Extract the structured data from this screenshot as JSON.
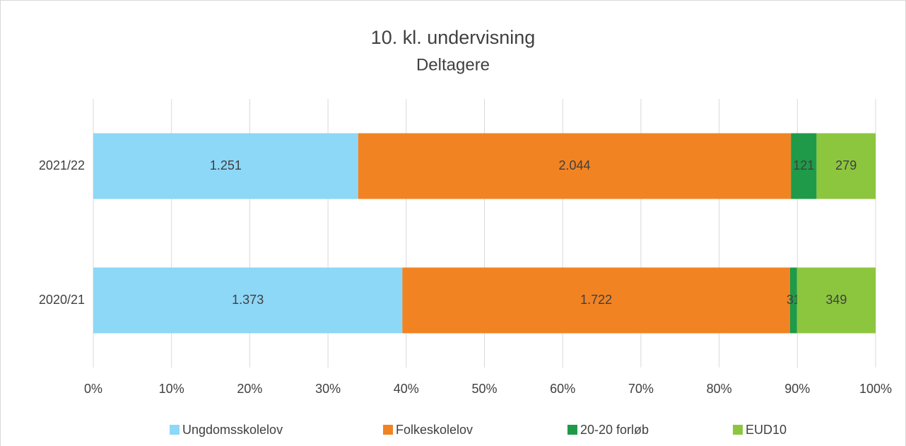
{
  "chart_data": {
    "type": "bar",
    "orientation": "horizontal",
    "stack": "percent",
    "title": "10. kl. undervisning",
    "subtitle": "Deltagere",
    "categories": [
      "2021/22",
      "2020/21"
    ],
    "series": [
      {
        "name": "Ungdomsskolelov",
        "color": "#8dd7f7",
        "values": [
          1251,
          1373
        ],
        "value_labels": [
          "1.251",
          "1.373"
        ]
      },
      {
        "name": "Folkeskolelov",
        "color": "#f28323",
        "values": [
          2044,
          1722
        ],
        "value_labels": [
          "2.044",
          "1.722"
        ]
      },
      {
        "name": "20-20 forløb",
        "color": "#1f9a48",
        "values": [
          121,
          31
        ]
      },
      {
        "name": "EUD10",
        "color": "#8cc63f",
        "values": [
          279,
          349
        ]
      }
    ],
    "xlim": [
      0,
      100
    ],
    "xticks": [
      {
        "value": 0,
        "label": "0%"
      },
      {
        "value": 10,
        "label": "10%"
      },
      {
        "value": 20,
        "label": "20%"
      },
      {
        "value": 30,
        "label": "30%"
      },
      {
        "value": 40,
        "label": "40%"
      },
      {
        "value": 50,
        "label": "50%"
      },
      {
        "value": 60,
        "label": "60%"
      },
      {
        "value": 70,
        "label": "70%"
      },
      {
        "value": 80,
        "label": "80%"
      },
      {
        "value": 90,
        "label": "90%"
      },
      {
        "value": 100,
        "label": "100%"
      }
    ],
    "grid": true,
    "legend": "bottom"
  }
}
